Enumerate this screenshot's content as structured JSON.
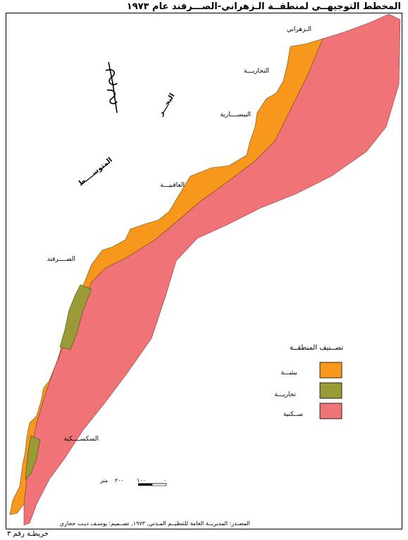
{
  "map": {
    "title": "المخطط التوجيهــي لمنطقــة الـزهراني-الصـــرفند عام ١٩٧٣",
    "caption": "خريطـة رقم ٣",
    "source": "المصـدر: المديريــة العامة للتنظيــم المـدني, ١٩٧٣, تصــميم: يوسـف ديـب حجازي"
  },
  "places": {
    "zahrani": "الـزهراني",
    "tijariya": "التجاريـــة",
    "bisariya": "البيســــارية",
    "aqbiya": "العاقبيـــة",
    "sarafand": "الصــــرفند",
    "saksakiya": "السكســــكية"
  },
  "sea": {
    "label_part1": "البحـــر",
    "label_part2": "المتوســــط"
  },
  "legend": {
    "title": "تصــنيف المنطقــة",
    "items": [
      {
        "label": "بيئيـــة",
        "color": "#f7981d"
      },
      {
        "label": "تجاريـــة",
        "color": "#9a9a36"
      },
      {
        "label": "ســكنية",
        "color": "#f07377"
      }
    ]
  },
  "scale": {
    "unit": "متر",
    "tick_0": "٠",
    "tick_100": "١٠٠",
    "tick_200": "٢٠٠"
  },
  "north_symbol": "N"
}
